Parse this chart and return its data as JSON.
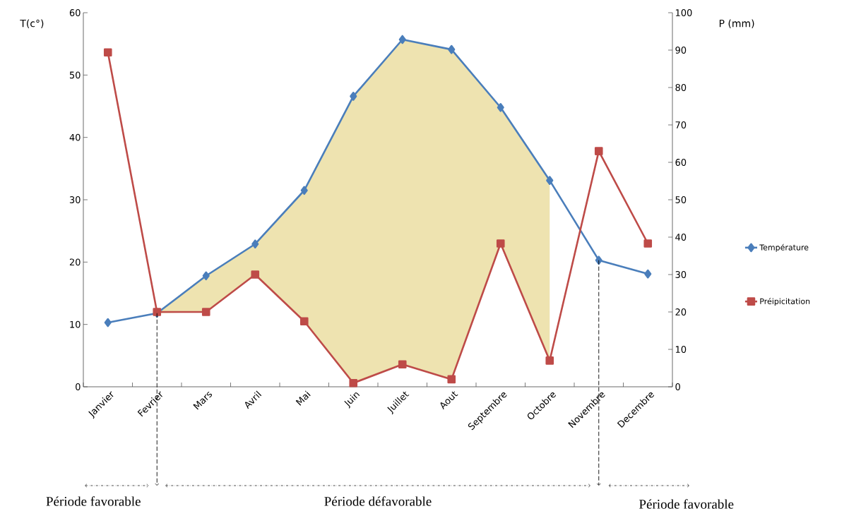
{
  "chart_data": {
    "type": "line",
    "categories": [
      "Janvier",
      "Fevrier",
      "Mars",
      "Avril",
      "Mai",
      "Juin",
      "Juillet",
      "Aout",
      "Septembre",
      "Octobre",
      "Novembre",
      "Decembre"
    ],
    "ylabel": "T(c°)",
    "y2label": "P (mm)",
    "ylim": [
      0,
      60
    ],
    "yticks": [
      0,
      10,
      20,
      30,
      40,
      50,
      60
    ],
    "y2lim": [
      0,
      100
    ],
    "y2ticks": [
      0,
      10,
      20,
      30,
      40,
      50,
      60,
      70,
      80,
      90,
      100
    ],
    "series": [
      {
        "name": "Température",
        "color": "#4a7ebb",
        "marker": "diamond",
        "axis": "y",
        "values": [
          10.3,
          11.8,
          17.8,
          22.9,
          31.5,
          46.6,
          55.7,
          54.1,
          44.8,
          33.1,
          20.3,
          18.1
        ],
        "upper": [
          null,
          11.8,
          17.8,
          22.9,
          31.5,
          46.6,
          55.7,
          54.1,
          44.8,
          33.1,
          null,
          null
        ],
        "lower": [
          null,
          11.8,
          12,
          18,
          10.5,
          0.6,
          3.6,
          1.2,
          23,
          4.2,
          null,
          null
        ]
      },
      {
        "name": "Préipicitation",
        "color": "#be4b48",
        "marker": "square",
        "axis": "y2",
        "values": [
          89.4,
          20,
          20,
          30,
          17.5,
          1,
          6,
          2,
          38.3,
          7,
          63,
          38.3
        ]
      }
    ],
    "ref_lines": [
      {
        "axis": "x",
        "value": "Fevrier",
        "line_style": "dashed"
      },
      {
        "axis": "x",
        "value": "Novembre",
        "line_style": "dashed"
      }
    ],
    "legend": "right",
    "annotations": [
      "Période favorable",
      "Période défavorable",
      "Période favorable"
    ]
  }
}
